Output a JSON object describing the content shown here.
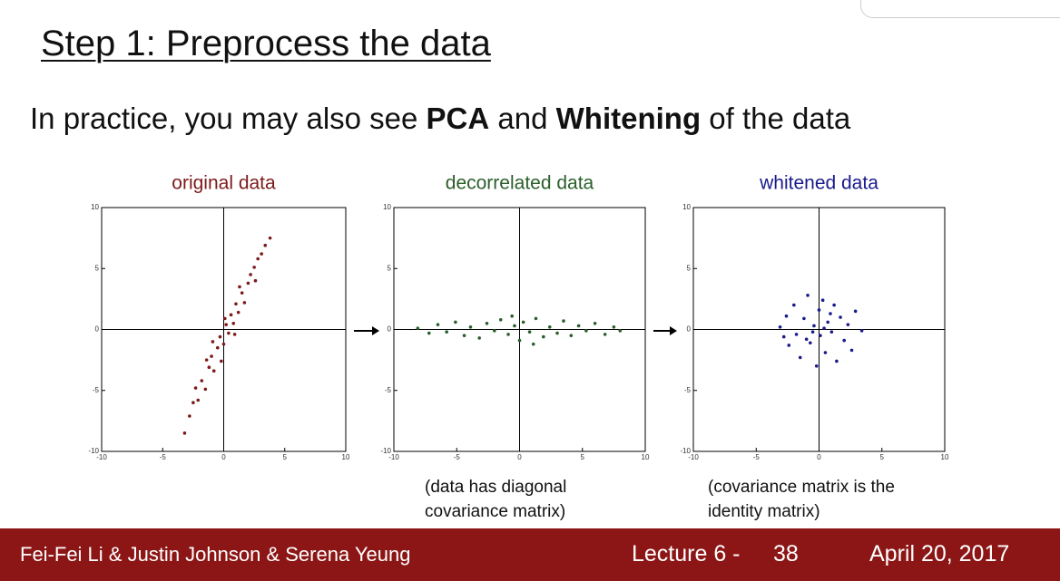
{
  "slide": {
    "title": "Step 1: Preprocess the data",
    "subtitle": [
      "In practice, you may also see",
      "PCA",
      "and",
      "Whitening",
      "of the data"
    ],
    "captions": [
      [
        "(data has diagonal",
        "covariance matrix)"
      ],
      [
        "(covariance matrix is the",
        "identity matrix)"
      ]
    ],
    "footer": {
      "authors": "Fei-Fei Li & Justin Johnson & Serena Yeung",
      "lecture": "Lecture 6 -",
      "page": "38",
      "date": "April 20, 2017"
    }
  },
  "chart_data": [
    {
      "type": "scatter",
      "title": "original data",
      "color": "#7d1a1a",
      "xlim": [
        -10,
        10
      ],
      "ylim": [
        -10,
        10
      ],
      "xticks": [
        -10,
        -5,
        0,
        5,
        10
      ],
      "yticks": [
        -10,
        -5,
        0,
        5,
        10
      ],
      "x": [
        -3.2,
        -2.8,
        -2.5,
        -2.1,
        -1.8,
        -1.5,
        -1.2,
        -1.0,
        -0.8,
        -0.5,
        -0.3,
        0,
        0.2,
        0.4,
        0.6,
        0.8,
        1.0,
        1.2,
        1.5,
        1.7,
        2.0,
        2.2,
        2.5,
        2.8,
        3.1,
        3.4,
        3.8,
        -1.4,
        0.1,
        1.3,
        -2.3,
        0.9,
        -0.2,
        2.6,
        -0.9
      ],
      "values": [
        -8.5,
        -7.1,
        -6.0,
        -5.8,
        -4.2,
        -4.9,
        -3.1,
        -2.2,
        -3.4,
        -1.5,
        -0.6,
        -1.2,
        0.4,
        -0.3,
        1.2,
        0.5,
        2.1,
        1.4,
        3.0,
        2.2,
        3.8,
        4.5,
        5.1,
        5.8,
        6.2,
        6.9,
        7.5,
        -2.5,
        0.9,
        3.5,
        -4.8,
        -0.4,
        -2.6,
        4.0,
        -1.0
      ]
    },
    {
      "type": "scatter",
      "title": "decorrelated data",
      "color": "#2a5e2a",
      "xlim": [
        -10,
        10
      ],
      "ylim": [
        -10,
        10
      ],
      "xticks": [
        -10,
        -5,
        0,
        5,
        10
      ],
      "yticks": [
        -10,
        -5,
        0,
        5,
        10
      ],
      "x": [
        -8.1,
        -7.2,
        -6.5,
        -5.8,
        -5.1,
        -4.4,
        -3.9,
        -3.2,
        -2.6,
        -2.0,
        -1.5,
        -0.9,
        -0.4,
        0,
        0.3,
        0.8,
        1.3,
        1.9,
        2.4,
        3.0,
        3.5,
        4.1,
        4.7,
        5.3,
        6.0,
        6.8,
        7.5,
        8.0,
        -0.6,
        1.1
      ],
      "values": [
        0.1,
        -0.3,
        0.4,
        -0.2,
        0.6,
        -0.5,
        0.2,
        -0.7,
        0.5,
        -0.1,
        0.8,
        -0.4,
        0.3,
        -0.9,
        0.6,
        -0.2,
        0.9,
        -0.6,
        0.2,
        -0.3,
        0.7,
        -0.5,
        0.3,
        -0.1,
        0.5,
        -0.4,
        0.2,
        -0.1,
        1.1,
        -1.2
      ]
    },
    {
      "type": "scatter",
      "title": "whitened data",
      "color": "#1a1a8c",
      "xlim": [
        -10,
        10
      ],
      "ylim": [
        -10,
        10
      ],
      "xticks": [
        -10,
        -5,
        0,
        5,
        10
      ],
      "yticks": [
        -10,
        -5,
        0,
        5,
        10
      ],
      "x": [
        -3.1,
        -2.6,
        -2.4,
        -2.0,
        -1.8,
        -1.5,
        -1.2,
        -0.9,
        -0.7,
        -0.4,
        -0.2,
        0,
        0.1,
        0.3,
        0.5,
        0.7,
        1.0,
        1.2,
        1.4,
        1.7,
        2.0,
        2.3,
        2.6,
        2.9,
        3.4,
        -0.5,
        0.4,
        -1.0,
        0.9,
        -2.8
      ],
      "values": [
        0.2,
        1.1,
        -1.3,
        2.0,
        -0.4,
        -2.3,
        0.9,
        2.8,
        -1.1,
        0.3,
        -3.0,
        1.6,
        -0.5,
        2.4,
        -1.9,
        0.6,
        -0.2,
        2.0,
        -2.6,
        1.0,
        -0.9,
        0.4,
        -1.7,
        1.5,
        -0.1,
        -0.2,
        0.1,
        -0.8,
        1.3,
        -0.6
      ]
    }
  ]
}
